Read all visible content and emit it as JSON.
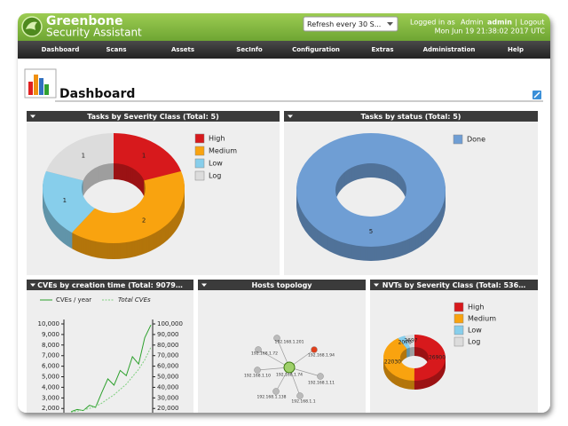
{
  "header": {
    "brand": "Greenbone",
    "subtitle": "Security Assistant",
    "refresh": "Refresh every 30 S...",
    "login_prefix": "Logged in as",
    "role": "Admin",
    "user": "admin",
    "separator": "|",
    "logout": "Logout",
    "datetime": "Mon Jun 19 21:38:02 2017 UTC"
  },
  "nav": [
    "Dashboard",
    "Scans",
    "Assets",
    "SecInfo",
    "Configuration",
    "Extras",
    "Administration",
    "Help"
  ],
  "page_title": "Dashboard",
  "chart_data": [
    {
      "type": "donut",
      "title": "Tasks by Severity Class (Total: 5)",
      "categories": [
        "High",
        "Medium",
        "Low",
        "Log"
      ],
      "values": [
        1,
        2,
        1,
        1
      ],
      "colors": [
        "#d7191c",
        "#f9a30f",
        "#87ceeb",
        "#dcdcdc"
      ]
    },
    {
      "type": "donut",
      "title": "Tasks by status (Total: 5)",
      "categories": [
        "Done"
      ],
      "values": [
        5
      ],
      "colors": [
        "#6f9ed4"
      ]
    },
    {
      "type": "line",
      "title": "CVEs by creation time (Total: 9079…",
      "categories": [
        null,
        null,
        null,
        null,
        null,
        null,
        null,
        null,
        null,
        null,
        null,
        null,
        null,
        null
      ],
      "series": [
        {
          "name": "CVEs / year",
          "color": "#2ca02c",
          "values": [
            1700,
            1900,
            1800,
            2300,
            2100,
            3500,
            4800,
            4200,
            5600,
            5100,
            6900,
            6200,
            8700,
            9900
          ]
        },
        {
          "name": "Total CVEs",
          "color": "#7fcf7f",
          "axis": "y2",
          "values": [
            16500,
            17500,
            18500,
            20000,
            22000,
            25000,
            29000,
            33000,
            38000,
            43000,
            50000,
            57000,
            66000,
            78000
          ]
        }
      ],
      "ylim": [
        1600,
        10000
      ],
      "yticks": [
        {
          "value": 2000,
          "label": "2,000"
        },
        {
          "value": 3000,
          "label": "3,000"
        },
        {
          "value": 4000,
          "label": "4,000"
        },
        {
          "value": 5000,
          "label": "5,000"
        },
        {
          "value": 6000,
          "label": "6,000"
        },
        {
          "value": 7000,
          "label": "7,000"
        },
        {
          "value": 8000,
          "label": "8,000"
        },
        {
          "value": 9000,
          "label": "9,000"
        },
        {
          "value": 10000,
          "label": "10,000"
        }
      ],
      "y2lim": [
        16000,
        100000
      ],
      "y2ticks": [
        {
          "value": 20000,
          "label": "20,000"
        },
        {
          "value": 30000,
          "label": "30,000"
        },
        {
          "value": 40000,
          "label": "40,000"
        },
        {
          "value": 50000,
          "label": "50,000"
        },
        {
          "value": 60000,
          "label": "60,000"
        },
        {
          "value": 70000,
          "label": "70,000"
        },
        {
          "value": 80000,
          "label": "80,000"
        },
        {
          "value": 90000,
          "label": "90,000"
        },
        {
          "value": 100000,
          "label": "100,000"
        }
      ]
    },
    {
      "type": "donut",
      "title": "NVTs by Severity Class (Total: 536…",
      "categories": [
        "High",
        "Medium",
        "Low",
        "Log"
      ],
      "values": [
        26900,
        22030,
        2070,
        2697
      ],
      "colors": [
        "#d7191c",
        "#f9a30f",
        "#87ceeb",
        "#dcdcdc"
      ]
    }
  ],
  "topology": {
    "title": "Hosts topology",
    "center": "192.168.1.74",
    "nodes": [
      {
        "label": "192.168.1.201",
        "color": "#bbbbbb"
      },
      {
        "label": "192.168.1.72",
        "color": "#bbbbbb"
      },
      {
        "label": "192.168.1.94",
        "color": "#e0401c"
      },
      {
        "label": "192.168.1.10",
        "color": "#bbbbbb"
      },
      {
        "label": "192.168.1.11",
        "color": "#bbbbbb"
      },
      {
        "label": "192.168.1.138",
        "color": "#bbbbbb"
      },
      {
        "label": "192.168.1.1",
        "color": "#bbbbbb"
      }
    ]
  }
}
